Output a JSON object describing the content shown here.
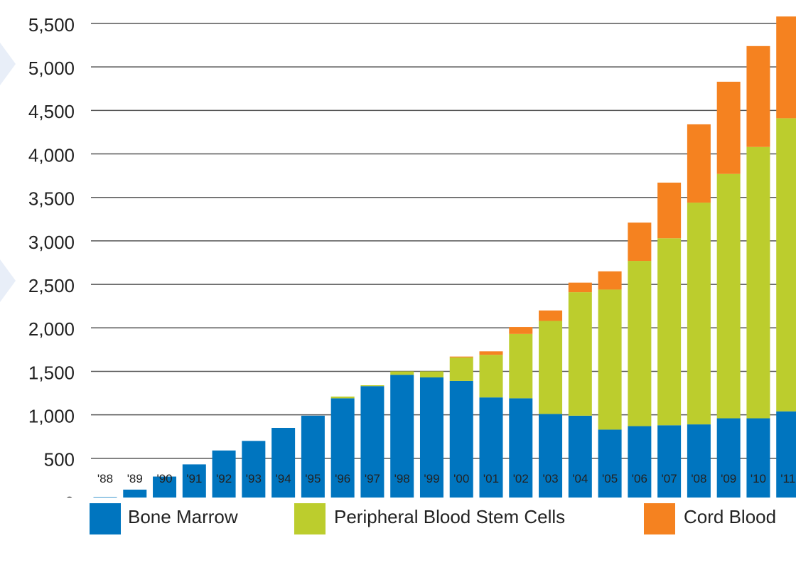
{
  "chart_data": {
    "type": "bar",
    "stacked": true,
    "categories": [
      "'88",
      "'89",
      "'90",
      "'91",
      "'92",
      "'93",
      "'94",
      "'95",
      "'96",
      "'97",
      "'98",
      "'99",
      "'00",
      "'01",
      "'02",
      "'03",
      "'04",
      "'05",
      "'06",
      "'07",
      "'08",
      "'09",
      "'10",
      "'11"
    ],
    "series": [
      {
        "name": "Bone Marrow",
        "color": "#0075bf",
        "values": [
          55,
          140,
          290,
          430,
          590,
          700,
          850,
          990,
          1190,
          1330,
          1460,
          1430,
          1390,
          1200,
          1190,
          1010,
          990,
          830,
          870,
          880,
          890,
          960,
          960,
          1040
        ]
      },
      {
        "name": "Peripheral Blood Stem Cells",
        "color": "#bccd2d",
        "values": [
          0,
          0,
          0,
          0,
          0,
          0,
          0,
          0,
          20,
          10,
          40,
          70,
          270,
          490,
          740,
          1070,
          1420,
          1610,
          1900,
          2150,
          2550,
          2810,
          3120,
          3370
        ]
      },
      {
        "name": "Cord Blood",
        "color": "#f58220",
        "values": [
          0,
          0,
          0,
          0,
          0,
          0,
          0,
          0,
          0,
          0,
          0,
          0,
          10,
          40,
          80,
          120,
          110,
          210,
          440,
          640,
          900,
          1060,
          1160,
          1170
        ]
      }
    ],
    "yticks": [
      "5,500",
      "5,000",
      "4,500",
      "4,000",
      "3,500",
      "3,000",
      "2,500",
      "2,000",
      "1,500",
      "1,000",
      "500",
      "0"
    ],
    "ylim": [
      0,
      5500
    ],
    "grid": true,
    "legend_position": "bottom"
  }
}
